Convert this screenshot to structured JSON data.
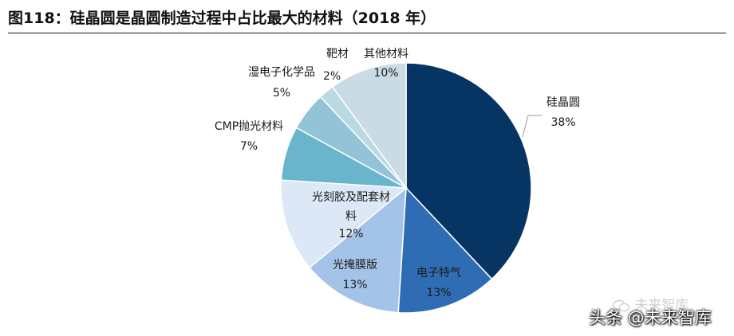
{
  "header": {
    "title": "图118：硅晶圆是晶圆制造过程中占比最大的材料（2018 年）"
  },
  "chart_data": {
    "type": "pie",
    "title": "图118：硅晶圆是晶圆制造过程中占比最大的材料（2018 年）",
    "start_angle_deg": 0,
    "direction": "clockwise",
    "slices": [
      {
        "label": "硅晶圆",
        "value": 38,
        "display": "38%",
        "color": "#063463"
      },
      {
        "label": "电子特气",
        "value": 13,
        "display": "13%",
        "color": "#2e6db3"
      },
      {
        "label": "光掩膜版",
        "value": 13,
        "display": "13%",
        "color": "#a3c3e8"
      },
      {
        "label": "光刻胶及配套材料",
        "value": 12,
        "display": "12%",
        "color": "#dce8f5"
      },
      {
        "label": "CMP抛光材料",
        "value": 7,
        "display": "7%",
        "color": "#6ab5cc"
      },
      {
        "label": "湿电子化学品",
        "value": 5,
        "display": "5%",
        "color": "#92c3d6"
      },
      {
        "label": "靶材",
        "value": 2,
        "display": "2%",
        "color": "#b9d9e3"
      },
      {
        "label": "其他材料",
        "value": 10,
        "display": "10%",
        "color": "#c9dce6"
      }
    ]
  },
  "watermarks": {
    "wechat_icon": "wechat-icon",
    "wechat_text": "未来智库",
    "toutiao_text": "头条 @未来智库"
  }
}
